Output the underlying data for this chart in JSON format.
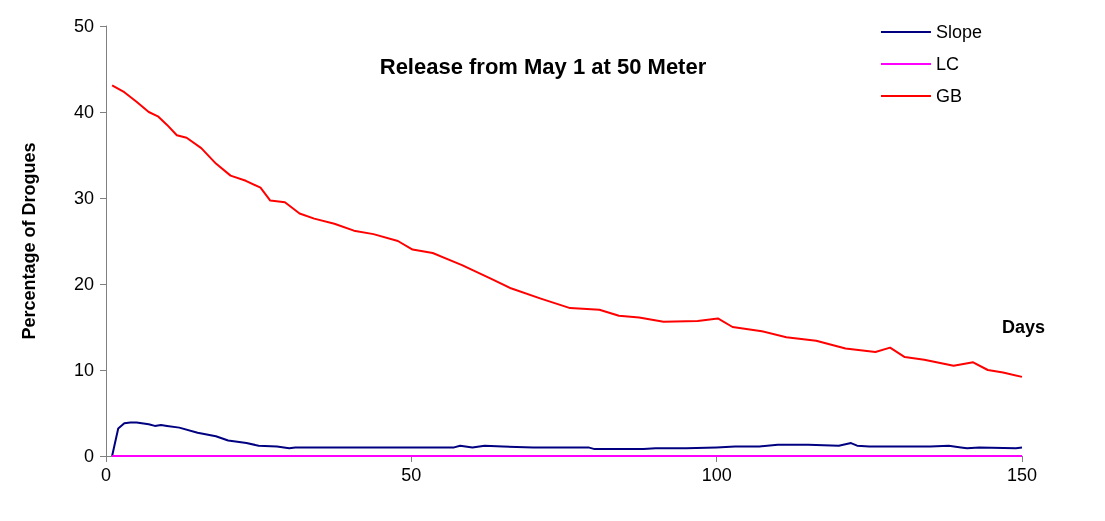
{
  "chart_data": {
    "type": "line",
    "title": "Release from May 1 at 50 Meter",
    "xlabel": "Days",
    "ylabel": "Percentage of Drogues",
    "xlim": [
      0,
      150
    ],
    "xticks": [
      0,
      50,
      100,
      150
    ],
    "ylim": [
      0,
      50
    ],
    "yticks": [
      0,
      10,
      20,
      30,
      40,
      50
    ],
    "grid": false,
    "legend": "top right",
    "marker": "none",
    "line_style": "solid",
    "series": [
      {
        "name": "Slope",
        "color": "#000080",
        "x": [
          1,
          2,
          3,
          4,
          5,
          7,
          8,
          9,
          10,
          12,
          15,
          18,
          20,
          23,
          25,
          28,
          30,
          31,
          32,
          40,
          50,
          57,
          58,
          60,
          62,
          65,
          70,
          79,
          80,
          88,
          90,
          95,
          100,
          103,
          107,
          110,
          115,
          120,
          122,
          123,
          125,
          130,
          135,
          138,
          140,
          141,
          143,
          149,
          150
        ],
        "values": [
          0,
          3.2,
          3.8,
          3.9,
          3.9,
          3.7,
          3.5,
          3.6,
          3.5,
          3.3,
          2.7,
          2.3,
          1.8,
          1.5,
          1.2,
          1.1,
          0.9,
          1.0,
          1.0,
          1.0,
          1.0,
          1.0,
          1.2,
          1.0,
          1.2,
          1.1,
          1.0,
          1.0,
          0.8,
          0.8,
          0.9,
          0.9,
          1.0,
          1.1,
          1.1,
          1.3,
          1.3,
          1.2,
          1.5,
          1.2,
          1.1,
          1.1,
          1.1,
          1.2,
          1.0,
          0.9,
          1.0,
          0.9,
          1.0
        ]
      },
      {
        "name": "LC",
        "color": "#ff00ff",
        "x": [
          1,
          150
        ],
        "values": [
          0,
          0
        ]
      },
      {
        "name": "GB",
        "color": "#ff0000",
        "x": [
          1,
          3,
          5,
          7,
          8.5,
          10,
          11.6,
          13.2,
          15.6,
          18,
          20.4,
          22.9,
          25.3,
          26.9,
          29.3,
          31.7,
          34.1,
          37.4,
          40.6,
          43.8,
          47.8,
          50.2,
          53.5,
          58.3,
          63.1,
          66.3,
          71.2,
          76,
          80.8,
          84,
          87.3,
          91.3,
          96.9,
          100.2,
          102.6,
          107.4,
          111.4,
          116.3,
          121.1,
          126,
          128.4,
          130.8,
          134,
          138.8,
          142,
          144.4,
          146.9,
          150
        ],
        "values": [
          43.1,
          42.3,
          41.2,
          40,
          39.5,
          38.5,
          37.3,
          37,
          35.8,
          34,
          32.6,
          32,
          31.2,
          29.7,
          29.5,
          28.2,
          27.6,
          27,
          26.2,
          25.8,
          25,
          24,
          23.6,
          22.2,
          20.6,
          19.5,
          18.3,
          17.2,
          17,
          16.3,
          16.1,
          15.6,
          15.7,
          16,
          15,
          14.5,
          13.8,
          13.4,
          12.5,
          12.1,
          12.6,
          11.5,
          11.2,
          10.5,
          10.9,
          10,
          9.7,
          9.2
        ]
      }
    ]
  }
}
